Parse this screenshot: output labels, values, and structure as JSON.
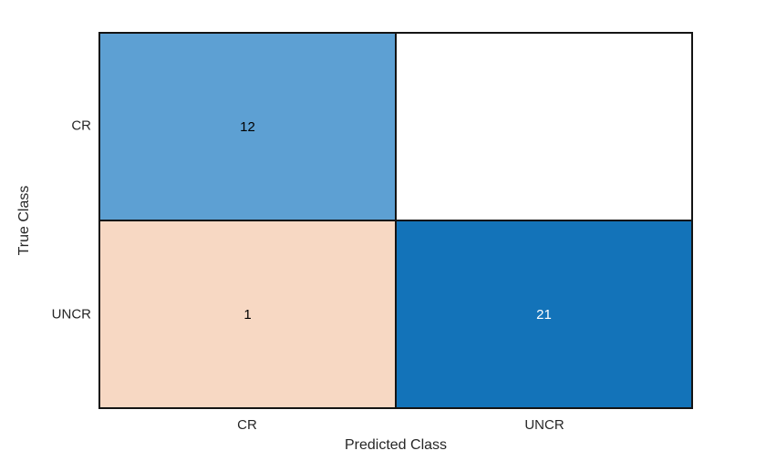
{
  "figure": {
    "background": "#ffffff",
    "border_color": "#141414",
    "label_color": "#262626"
  },
  "chart_data": {
    "type": "heatmap",
    "subtype": "confusion-matrix",
    "title": "",
    "xlabel": "Predicted Class",
    "ylabel": "True Class",
    "x_categories": [
      "CR",
      "UNCR"
    ],
    "y_categories": [
      "CR",
      "UNCR"
    ],
    "legend": "none",
    "grid": "cell-borders",
    "cells": [
      {
        "true_class": "CR",
        "predicted_class": "CR",
        "value": 12,
        "label": "12",
        "bg": "#5da0d3",
        "text_color": "#000000"
      },
      {
        "true_class": "CR",
        "predicted_class": "UNCR",
        "value": null,
        "label": "",
        "bg": "#ffffff",
        "text_color": "#000000"
      },
      {
        "true_class": "UNCR",
        "predicted_class": "CR",
        "value": 1,
        "label": "1",
        "bg": "#f7d8c3",
        "text_color": "#000000"
      },
      {
        "true_class": "UNCR",
        "predicted_class": "UNCR",
        "value": 21,
        "label": "21",
        "bg": "#1373b9",
        "text_color": "#ffffff"
      }
    ]
  }
}
